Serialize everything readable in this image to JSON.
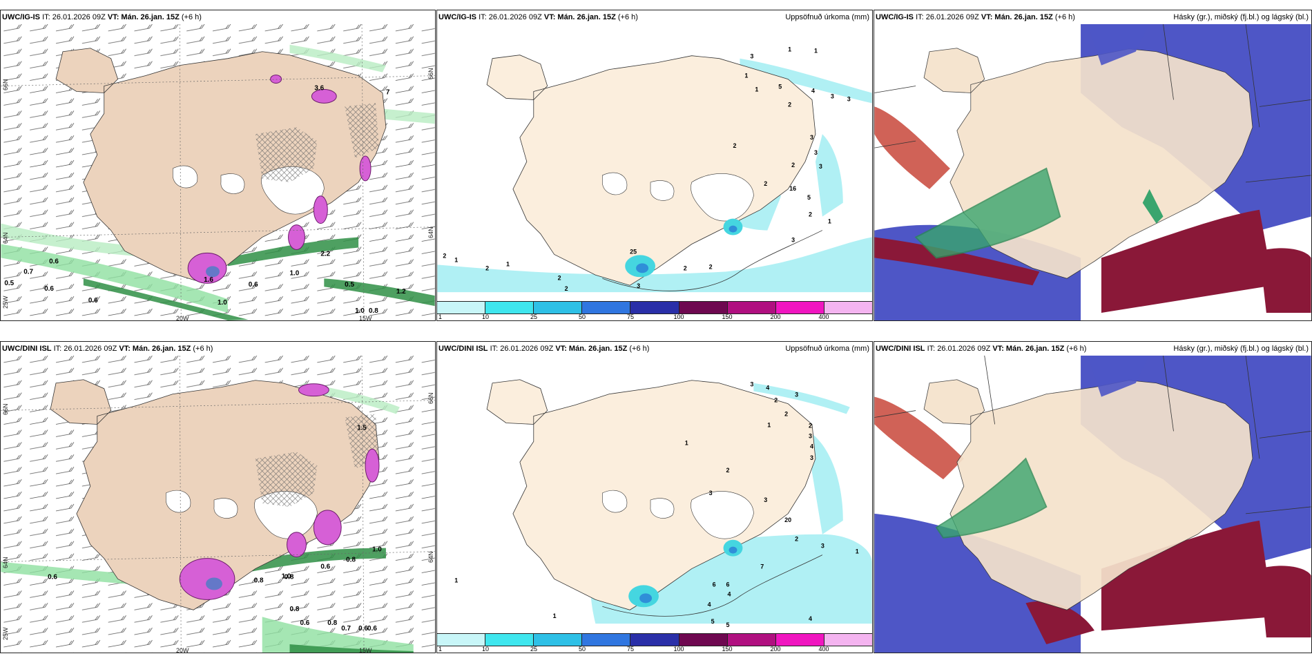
{
  "colors": {
    "land": "#f5e2cc",
    "land_left": "#ecd3bd",
    "ocean": "#ffffff",
    "precip_light": "#9ff0f2",
    "precip_mid": "#45d6e0",
    "snow_pink": "#e070e0",
    "green_rain": "#7fd890",
    "green_dark": "#1f7a32",
    "cloud_blue": "#5058c8",
    "cloud_red": "#c8473a",
    "cloud_maroon": "#8a1838",
    "cloud_green": "#3aa56e"
  },
  "rows": [
    {
      "model": "UWC/IG-IS",
      "it": "IT: 26.01.2026 09Z",
      "vt_label": "VT:",
      "vt": "Mán. 26.jan. 15Z",
      "lead": "(+6 h)",
      "panel2_title": "Uppsöfnuð úrkoma (mm)",
      "panel3_title": "Hásky (gr.), miðský (fj.bl.) og lágský (bl.)",
      "left_axis": {
        "lon_20": "20W",
        "lon_15": "15W",
        "lat66_left": "66N",
        "lat64_left": "64N",
        "lat66_right": "66N",
        "lat64_right": "64N",
        "lat_25w": "25W"
      },
      "left_values": [
        "0.6",
        "0.5",
        "0.7",
        "0.6",
        "0.6",
        "1.0",
        "0.6",
        "1.0",
        "0.5",
        "1.0",
        "0.8",
        "1.2",
        "2.2",
        "1.6",
        "7",
        "3.6"
      ],
      "precip_values": [
        "1",
        "1",
        "3",
        "1",
        "1",
        "5",
        "4",
        "3",
        "3",
        "2",
        "3",
        "3",
        "2",
        "2",
        "3",
        "2",
        "16",
        "5",
        "2",
        "1",
        "3",
        "25",
        "2",
        "2",
        "2",
        "1",
        "2",
        "1",
        "2",
        "2",
        "3"
      ]
    },
    {
      "model": "UWC/DINI ISL",
      "it": "IT: 26.01.2026 09Z",
      "vt_label": "VT:",
      "vt": "Mán. 26.jan. 15Z",
      "lead": "(+6 h)",
      "panel2_title": "Uppsöfnuð úrkoma (mm)",
      "panel3_title": "Hásky (gr.), miðský (fj.bl.) og lágský (bl.)",
      "left_axis": {
        "lon_20": "20W",
        "lon_15": "15W",
        "lat66_left": "66N",
        "lat64_left": "64N",
        "lat66_right": "66N",
        "lat64_right": "64N",
        "lat_25w": "25W"
      },
      "left_values": [
        "0.6",
        "0.8",
        "0.8",
        "0.6",
        "0.8",
        "1.0",
        "0.8",
        "0.6",
        "0.8",
        "0.7",
        "0.6",
        "1.5",
        "1.0",
        "0.6"
      ],
      "precip_values": [
        "3",
        "4",
        "3",
        "2",
        "2",
        "1",
        "2",
        "3",
        "4",
        "3",
        "1",
        "2",
        "3",
        "3",
        "20",
        "2",
        "7",
        "6",
        "6",
        "4",
        "4",
        "5",
        "5",
        "4",
        "1",
        "3",
        "1",
        "1"
      ]
    }
  ],
  "colorbar": {
    "ticks": [
      "1",
      "10",
      "25",
      "50",
      "75",
      "100",
      "150",
      "200",
      "400"
    ],
    "colors": [
      "#c8f6f8",
      "#3fe6ee",
      "#2ec0e6",
      "#3076e0",
      "#2a2fa8",
      "#6e0850",
      "#b01080",
      "#f016c0",
      "#f4b4f0"
    ]
  }
}
